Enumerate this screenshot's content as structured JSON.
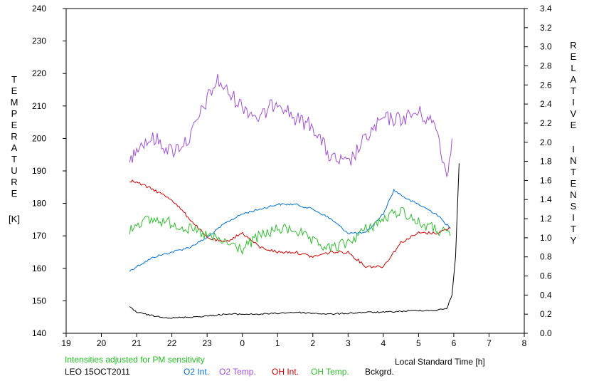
{
  "chart_data": {
    "type": "line",
    "left_axis": {
      "label_letters": [
        "T",
        "E",
        "M",
        "P",
        "E",
        "R",
        "A",
        "T",
        "U",
        "R",
        "E"
      ],
      "unit": "[K]",
      "range": [
        140,
        240
      ],
      "ticks": [
        "140",
        "150",
        "160",
        "170",
        "180",
        "190",
        "200",
        "210",
        "220",
        "230",
        "240"
      ]
    },
    "right_axis": {
      "label_letters": [
        "R",
        "E",
        "L",
        "A",
        "T",
        "I",
        "V",
        "E"
      ],
      "label_letters_2": [
        "I",
        "N",
        "T",
        "E",
        "N",
        "S",
        "I",
        "T",
        "Y"
      ],
      "range": [
        0.0,
        3.4
      ],
      "ticks": [
        "0.0",
        "0.2",
        "0.4",
        "0.6",
        "0.8",
        "1.0",
        "1.2",
        "1.4",
        "1.6",
        "1.8",
        "2.0",
        "2.2",
        "2.4",
        "2.6",
        "2.8",
        "3.0",
        "3.2",
        "3.4"
      ]
    },
    "x_axis": {
      "label": "Local Standard Time [h]",
      "range": [
        19,
        32
      ],
      "ticks": [
        "19",
        "20",
        "21",
        "22",
        "23",
        "0",
        "1",
        "2",
        "3",
        "4",
        "5",
        "6",
        "7",
        "8"
      ]
    },
    "note": "Intensities adjusted for PM sensitivity",
    "station_date": "LEO 15OCT2011",
    "series": [
      {
        "name": "O2 Int.",
        "color": "#0070d0",
        "axis": "right",
        "x": [
          20.8,
          21.0,
          21.5,
          22.0,
          22.5,
          23.0,
          23.5,
          24.0,
          24.5,
          25.0,
          25.5,
          26.0,
          26.5,
          27.0,
          27.5,
          28.0,
          28.3,
          28.7,
          29.0,
          29.5,
          29.9
        ],
        "y": [
          0.65,
          0.7,
          0.8,
          0.85,
          0.9,
          1.0,
          1.15,
          1.25,
          1.3,
          1.35,
          1.35,
          1.3,
          1.2,
          1.05,
          1.05,
          1.25,
          1.5,
          1.4,
          1.35,
          1.25,
          1.1
        ]
      },
      {
        "name": "O2 Temp.",
        "color": "#a050d8",
        "axis": "left",
        "x": [
          20.8,
          21.0,
          21.5,
          22.0,
          22.5,
          23.0,
          23.3,
          23.6,
          24.0,
          24.5,
          25.0,
          25.5,
          26.0,
          26.5,
          27.0,
          27.5,
          28.0,
          28.5,
          29.0,
          29.5,
          29.8,
          29.95
        ],
        "y": [
          192,
          198,
          200,
          196,
          200,
          212,
          218,
          214,
          210,
          206,
          212,
          206,
          204,
          194,
          192,
          200,
          206,
          206,
          208,
          204,
          188,
          200
        ]
      },
      {
        "name": "OH Int.",
        "color": "#d00000",
        "axis": "right",
        "x": [
          20.8,
          21.0,
          21.5,
          22.0,
          22.5,
          23.0,
          23.5,
          24.0,
          24.5,
          25.0,
          25.5,
          26.0,
          26.5,
          27.0,
          27.5,
          28.0,
          28.5,
          29.0,
          29.5,
          29.9
        ],
        "y": [
          1.6,
          1.58,
          1.5,
          1.4,
          1.2,
          1.0,
          0.95,
          1.05,
          0.9,
          0.85,
          0.85,
          0.8,
          0.85,
          0.85,
          0.7,
          0.7,
          0.95,
          1.05,
          1.05,
          1.1
        ]
      },
      {
        "name": "OH Temp.",
        "color": "#30c030",
        "axis": "left",
        "x": [
          20.8,
          21.0,
          21.5,
          22.0,
          22.5,
          23.0,
          23.5,
          24.0,
          24.5,
          25.0,
          25.5,
          26.0,
          26.5,
          27.0,
          27.5,
          28.0,
          28.5,
          29.0,
          29.5,
          29.9
        ],
        "y": [
          172,
          174,
          175,
          174,
          172,
          170,
          168,
          166,
          170,
          172,
          172,
          168,
          166,
          168,
          172,
          175,
          178,
          174,
          172,
          170
        ]
      },
      {
        "name": "Bckgrd.",
        "color": "#000000",
        "axis": "right",
        "x": [
          20.8,
          21.0,
          21.5,
          22.0,
          22.5,
          23.0,
          23.5,
          24.0,
          24.5,
          25.0,
          25.5,
          26.0,
          26.5,
          27.0,
          27.5,
          28.0,
          28.5,
          29.0,
          29.5,
          29.8,
          29.95,
          30.05,
          30.15
        ],
        "y": [
          0.28,
          0.22,
          0.18,
          0.16,
          0.17,
          0.18,
          0.2,
          0.2,
          0.2,
          0.21,
          0.22,
          0.21,
          0.2,
          0.21,
          0.22,
          0.22,
          0.23,
          0.24,
          0.24,
          0.26,
          0.4,
          0.8,
          1.78
        ]
      }
    ]
  }
}
